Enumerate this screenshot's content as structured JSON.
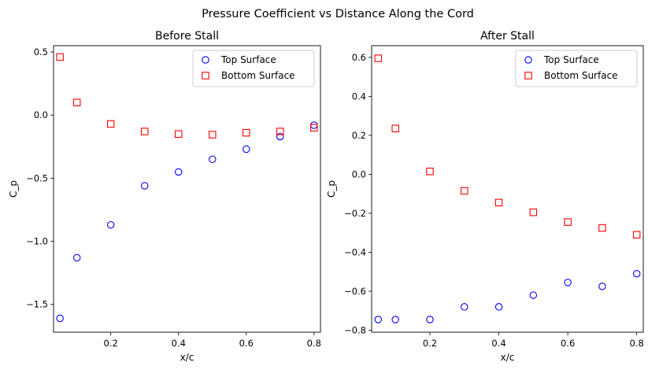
{
  "figure": {
    "suptitle": "Pressure Coefficient vs Distance Along the Cord"
  },
  "chart_data": [
    {
      "type": "scatter",
      "title": "Before Stall",
      "xlabel": "x/c",
      "ylabel": "C_p",
      "xlim": [
        0.031,
        0.819
      ],
      "ylim": [
        -1.72,
        0.55
      ],
      "xticks": [
        0.2,
        0.4,
        0.6,
        0.8
      ],
      "xtick_labels": [
        "0.2",
        "0.4",
        "0.6",
        "0.8"
      ],
      "yticks": [
        -1.5,
        -1.0,
        -0.5,
        0.0,
        0.5
      ],
      "ytick_labels": [
        "−1.5",
        "−1.0",
        "−0.5",
        "0.0",
        "0.5"
      ],
      "grid": false,
      "legend_position": "top-right",
      "series": [
        {
          "name": "Top Surface",
          "marker": "circle",
          "color": "#0000ff",
          "x": [
            0.05,
            0.1,
            0.2,
            0.3,
            0.4,
            0.5,
            0.6,
            0.7,
            0.8
          ],
          "y": [
            -1.61,
            -1.13,
            -0.87,
            -0.56,
            -0.45,
            -0.35,
            -0.27,
            -0.17,
            -0.08
          ]
        },
        {
          "name": "Bottom Surface",
          "marker": "square",
          "color": "#ff0000",
          "x": [
            0.05,
            0.1,
            0.2,
            0.3,
            0.4,
            0.5,
            0.6,
            0.7,
            0.8
          ],
          "y": [
            0.46,
            0.1,
            -0.07,
            -0.13,
            -0.15,
            -0.155,
            -0.14,
            -0.13,
            -0.1
          ]
        }
      ]
    },
    {
      "type": "scatter",
      "title": "After Stall",
      "xlabel": "x/c",
      "ylabel": "C_p",
      "xlim": [
        0.031,
        0.819
      ],
      "ylim": [
        -0.81,
        0.66
      ],
      "xticks": [
        0.2,
        0.4,
        0.6,
        0.8
      ],
      "xtick_labels": [
        "0.2",
        "0.4",
        "0.6",
        "0.8"
      ],
      "yticks": [
        -0.8,
        -0.6,
        -0.4,
        -0.2,
        0.0,
        0.2,
        0.4,
        0.6
      ],
      "ytick_labels": [
        "−0.8",
        "−0.6",
        "−0.4",
        "−0.2",
        "0.0",
        "0.2",
        "0.4",
        "0.6"
      ],
      "grid": false,
      "legend_position": "top-right",
      "series": [
        {
          "name": "Top Surface",
          "marker": "circle",
          "color": "#0000ff",
          "x": [
            0.05,
            0.1,
            0.2,
            0.3,
            0.4,
            0.5,
            0.6,
            0.7,
            0.8
          ],
          "y": [
            -0.745,
            -0.745,
            -0.745,
            -0.68,
            -0.68,
            -0.62,
            -0.555,
            -0.575,
            -0.51
          ]
        },
        {
          "name": "Bottom Surface",
          "marker": "square",
          "color": "#ff0000",
          "x": [
            0.05,
            0.1,
            0.2,
            0.3,
            0.4,
            0.5,
            0.6,
            0.7,
            0.8
          ],
          "y": [
            0.595,
            0.235,
            0.015,
            -0.085,
            -0.145,
            -0.195,
            -0.245,
            -0.275,
            -0.31
          ]
        }
      ]
    }
  ]
}
